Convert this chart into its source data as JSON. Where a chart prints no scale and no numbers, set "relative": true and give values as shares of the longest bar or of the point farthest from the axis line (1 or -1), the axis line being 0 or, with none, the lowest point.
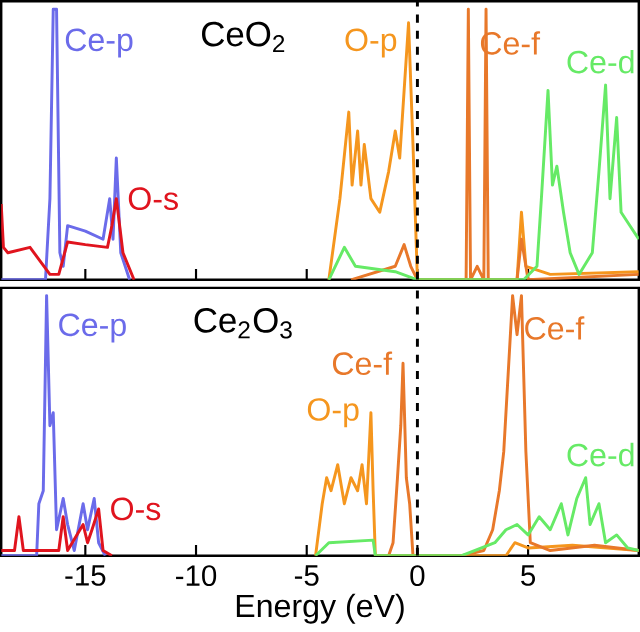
{
  "chart_data": [
    {
      "type": "line",
      "title": "CeO$_{2}$",
      "relative": true,
      "xlim": [
        -18.8,
        10
      ],
      "xticks": [
        -15,
        -10,
        -5,
        0,
        5
      ],
      "tick_labels": false,
      "ref_lines": [
        {
          "axis": "x",
          "value": 0,
          "color": "#000000",
          "line_style": "dashed"
        }
      ],
      "series": [
        {
          "name": "Ce-p",
          "color": "#6b6bea",
          "x": [
            -18.8,
            -16.8,
            -16.6,
            -16.45,
            -16.3,
            -16.15,
            -16.0,
            -15.8,
            -15.0,
            -14.2,
            -13.9,
            -13.75,
            -13.6,
            -13.4,
            -13.0
          ],
          "values": [
            0,
            0,
            0.3,
            1,
            1,
            0.1,
            0.05,
            0.2,
            0.18,
            0.15,
            0.3,
            0.15,
            0.45,
            0.1,
            0
          ]
        },
        {
          "name": "O-s",
          "color": "#e0141e",
          "x": [
            -18.8,
            -18.7,
            -18.5,
            -17.5,
            -16.6,
            -16.2,
            -15.8,
            -15.0,
            -14.0,
            -13.8,
            -13.6,
            -13.3,
            -12.8
          ],
          "values": [
            0.28,
            0.12,
            0.1,
            0.12,
            0.02,
            0.02,
            0.14,
            0.13,
            0.12,
            0.2,
            0.3,
            0.1,
            0
          ]
        },
        {
          "name": "O-p",
          "color": "#f5961e",
          "x": [
            -4.0,
            -3.5,
            -3.1,
            -2.95,
            -2.7,
            -2.55,
            -2.4,
            -2.1,
            -1.7,
            -1.3,
            -1.0,
            -0.8,
            -0.6,
            -0.4,
            -0.2,
            0,
            2.0,
            4.5,
            4.7,
            4.9,
            6.0,
            10
          ],
          "values": [
            0,
            0.3,
            0.62,
            0.35,
            0.55,
            0.35,
            0.5,
            0.3,
            0.25,
            0.4,
            0.55,
            0.45,
            0.7,
            0.95,
            0.5,
            0,
            0,
            0,
            0.25,
            0.05,
            0.02,
            0.03
          ]
        },
        {
          "name": "Ce-f",
          "color": "#e8782a",
          "x": [
            -3.0,
            -1.0,
            -0.6,
            -0.3,
            0,
            2.2,
            2.3,
            2.4,
            2.7,
            3.0,
            3.1,
            3.2,
            4.5,
            4.7,
            5.0,
            10
          ],
          "values": [
            0,
            0.05,
            0.13,
            0.05,
            0,
            0,
            1,
            0,
            0.05,
            0,
            1,
            0,
            0,
            0.15,
            0,
            0.02
          ]
        },
        {
          "name": "Ce-d",
          "color": "#66ea66",
          "x": [
            -4.0,
            -3.3,
            -2.8,
            -1.0,
            0,
            4.8,
            5.4,
            5.6,
            5.9,
            6.1,
            6.3,
            6.6,
            6.9,
            7.3,
            7.9,
            8.2,
            8.5,
            8.7,
            9.0,
            9.2,
            9.6,
            10
          ],
          "values": [
            0,
            0.12,
            0.05,
            0.03,
            0,
            0,
            0.05,
            0.3,
            0.7,
            0.35,
            0.42,
            0.25,
            0.1,
            0.02,
            0.1,
            0.4,
            0.72,
            0.3,
            0.6,
            0.25,
            0.2,
            0.15
          ]
        }
      ]
    },
    {
      "type": "line",
      "title": "Ce$_{2}$O$_{3}$",
      "relative": true,
      "xlabel": "Energy (eV)",
      "xlim": [
        -18.8,
        10
      ],
      "xticks": [
        -15,
        -10,
        -5,
        0,
        5
      ],
      "tick_labels": "x",
      "ref_lines": [
        {
          "axis": "x",
          "value": 0,
          "color": "#000000",
          "line_style": "dashed"
        }
      ],
      "series": [
        {
          "name": "Ce-p",
          "color": "#6b6bea",
          "x": [
            -18.8,
            -17.2,
            -17.1,
            -16.9,
            -16.75,
            -16.6,
            -16.45,
            -16.3,
            -16.0,
            -15.8,
            -15.5,
            -15.1,
            -14.9,
            -14.6,
            -14.4,
            -14.1
          ],
          "values": [
            0,
            0,
            0.2,
            0.25,
            1,
            0.5,
            0.55,
            0.1,
            0.22,
            0.12,
            0.02,
            0.2,
            0.1,
            0.22,
            0.05,
            0
          ]
        },
        {
          "name": "O-s",
          "color": "#e0141e",
          "x": [
            -18.8,
            -18.2,
            -18.0,
            -17.8,
            -16.2,
            -16.0,
            -15.8,
            -15.1,
            -14.9,
            -14.7,
            -14.4,
            -14.2,
            -13.8
          ],
          "values": [
            0.02,
            0.02,
            0.15,
            0.02,
            0.02,
            0.15,
            0.02,
            0.12,
            0.05,
            0.1,
            0.18,
            0.02,
            0
          ]
        },
        {
          "name": "O-p",
          "color": "#f5961e",
          "x": [
            -4.6,
            -4.3,
            -4.1,
            -3.9,
            -3.6,
            -3.3,
            -3.0,
            -2.7,
            -2.5,
            -2.3,
            -2.1,
            -2.0,
            -1.9,
            4.0,
            4.4,
            5.0,
            7.0,
            10
          ],
          "values": [
            0,
            0.2,
            0.3,
            0.25,
            0.35,
            0.2,
            0.3,
            0.25,
            0.35,
            0.2,
            0.55,
            0.25,
            0,
            0,
            0.05,
            0.03,
            0.04,
            0.02
          ]
        },
        {
          "name": "Ce-f",
          "color": "#e8782a",
          "x": [
            -1.3,
            -1.1,
            -0.9,
            -0.75,
            -0.65,
            -0.5,
            -0.35,
            -0.2,
            0
          ],
          "values": [
            0,
            0.05,
            0.3,
            0.5,
            0.74,
            0.3,
            0.2,
            0,
            0
          ]
        },
        {
          "name": "Ce-f",
          "color": "#e8782a",
          "x": [
            2.0,
            3.0,
            3.4,
            3.7,
            3.9,
            4.1,
            4.3,
            4.5,
            4.7,
            4.9,
            5.1,
            6.0,
            8.0,
            10
          ],
          "values": [
            0,
            0.02,
            0.1,
            0.25,
            0.4,
            0.7,
            1,
            0.85,
            1,
            0.4,
            0.05,
            0.02,
            0.04,
            0.02
          ]
        },
        {
          "name": "Ce-d",
          "color": "#66ea66",
          "x": [
            -4.6,
            -4.0,
            -2.0,
            -1.9,
            2.0,
            3.5,
            4.0,
            4.5,
            5.0,
            5.5,
            6.0,
            6.5,
            6.8,
            7.2,
            7.6,
            7.8,
            8.2,
            8.5,
            9.0,
            9.5,
            10
          ],
          "values": [
            0,
            0.05,
            0.06,
            0,
            0,
            0.05,
            0.1,
            0.12,
            0.08,
            0.15,
            0.1,
            0.2,
            0.08,
            0.22,
            0.3,
            0.12,
            0.2,
            0.05,
            0.08,
            0.03,
            0.02
          ]
        }
      ]
    }
  ]
}
